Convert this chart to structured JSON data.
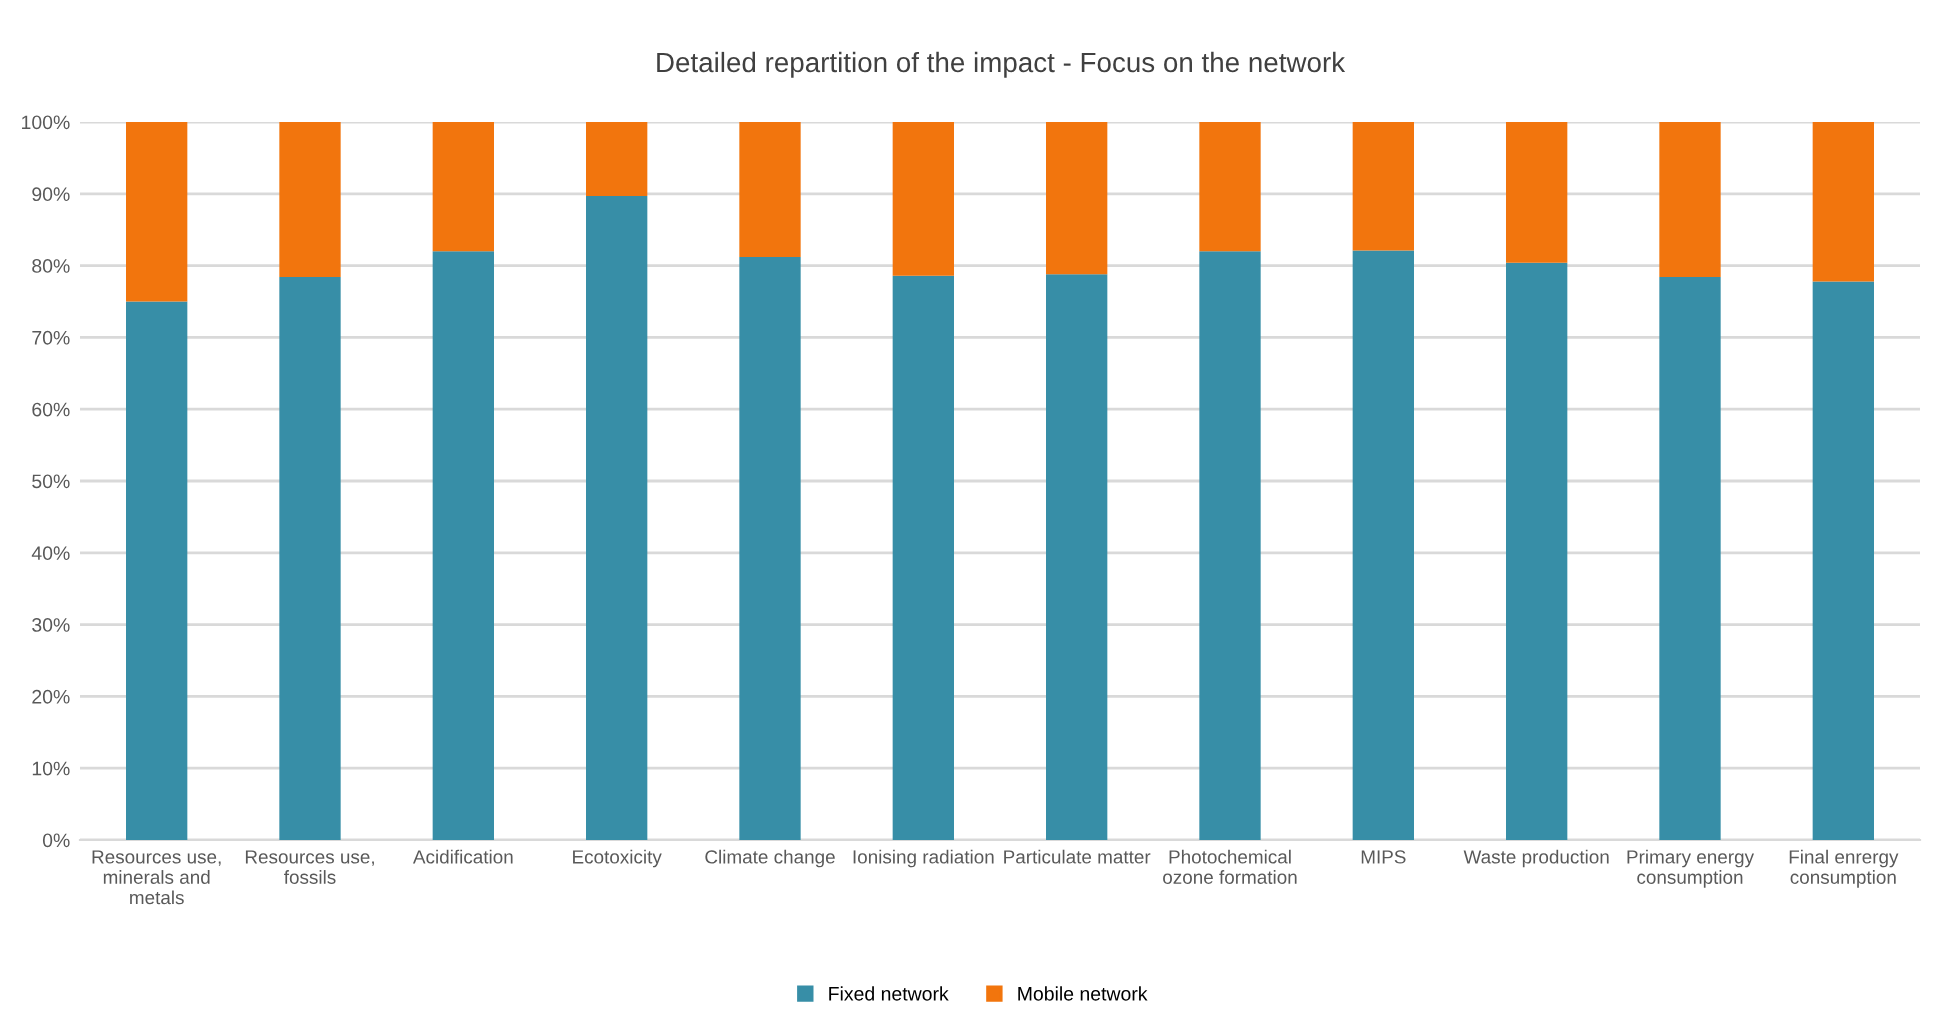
{
  "chart_data": {
    "type": "bar",
    "title": "Detailed repartition of the impact - Focus on the network",
    "categories": [
      "Resources use,\nminerals and\nmetals",
      "Resources use,\nfossils",
      "Acidification",
      "Ecotoxicity",
      "Climate change",
      "Ionising radiation",
      "Particulate matter",
      "Photochemical\nozone formation",
      "MIPS",
      "Waste production",
      "Primary energy\nconsumption",
      "Final enrergy\nconsumption"
    ],
    "series": [
      {
        "name": "Fixed network",
        "color": "#378ea7",
        "values": [
          75,
          78.4,
          82,
          89.7,
          81.2,
          78.6,
          78.8,
          82,
          82.1,
          80.4,
          78.4,
          77.8
        ]
      },
      {
        "name": "Mobile network",
        "color": "#f2750d",
        "values": [
          25,
          21.6,
          18,
          10.3,
          18.8,
          21.4,
          21.2,
          18,
          17.9,
          19.6,
          21.6,
          22.2
        ]
      }
    ],
    "stacked": true,
    "ylim": [
      0,
      100
    ],
    "yticks": [
      {
        "value": 0,
        "label": "0%"
      },
      {
        "value": 10,
        "label": "10%"
      },
      {
        "value": 20,
        "label": "20%"
      },
      {
        "value": 30,
        "label": "30%"
      },
      {
        "value": 40,
        "label": "40%"
      },
      {
        "value": 50,
        "label": "50%"
      },
      {
        "value": 60,
        "label": "60%"
      },
      {
        "value": 70,
        "label": "70%"
      },
      {
        "value": 80,
        "label": "80%"
      },
      {
        "value": 90,
        "label": "90%"
      },
      {
        "value": 100,
        "label": "100%"
      }
    ],
    "grid": "y",
    "legend": "bottom"
  }
}
